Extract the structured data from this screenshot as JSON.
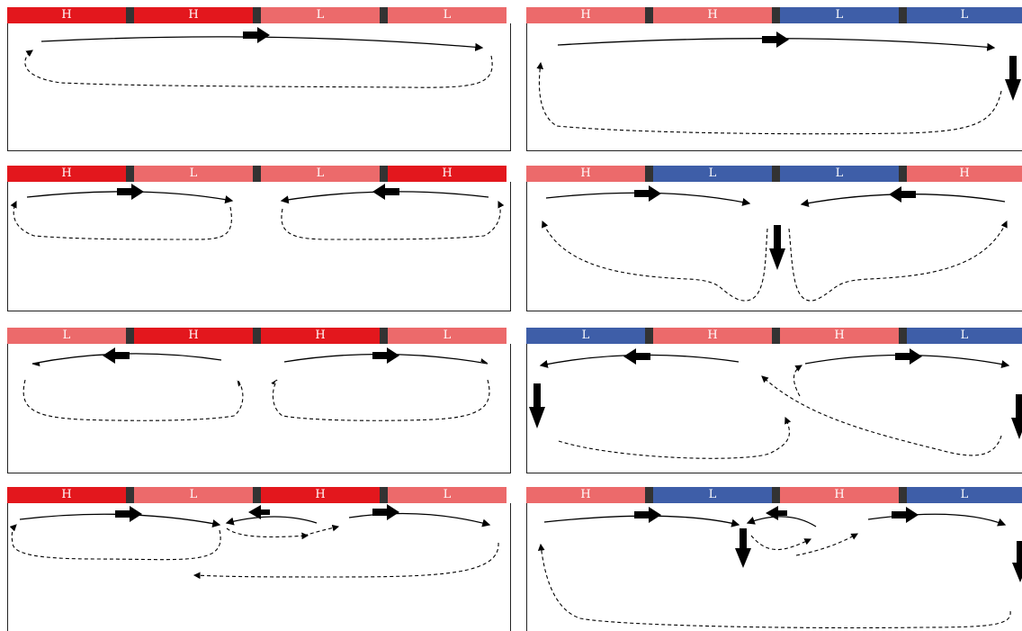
{
  "colors": {
    "H_strong": "#e3171d",
    "H_light": "#ec6a6b",
    "L_light": "#ec6a6b",
    "L_blue": "#3e5ea8",
    "separator": "#333333"
  },
  "panels": [
    {
      "id": "p1",
      "segments": [
        {
          "label": "H",
          "color": "#e3171d"
        },
        {
          "label": "H",
          "color": "#e3171d"
        },
        {
          "label": "L",
          "color": "#ec6a6b"
        },
        {
          "label": "L",
          "color": "#ec6a6b"
        }
      ]
    },
    {
      "id": "p2",
      "segments": [
        {
          "label": "H",
          "color": "#ec6a6b"
        },
        {
          "label": "H",
          "color": "#ec6a6b"
        },
        {
          "label": "L",
          "color": "#3e5ea8"
        },
        {
          "label": "L",
          "color": "#3e5ea8"
        }
      ]
    },
    {
      "id": "p3",
      "segments": [
        {
          "label": "H",
          "color": "#e3171d"
        },
        {
          "label": "L",
          "color": "#ec6a6b"
        },
        {
          "label": "L",
          "color": "#ec6a6b"
        },
        {
          "label": "H",
          "color": "#e3171d"
        }
      ]
    },
    {
      "id": "p4",
      "segments": [
        {
          "label": "H",
          "color": "#ec6a6b"
        },
        {
          "label": "L",
          "color": "#3e5ea8"
        },
        {
          "label": "L",
          "color": "#3e5ea8"
        },
        {
          "label": "H",
          "color": "#ec6a6b"
        }
      ]
    },
    {
      "id": "p5",
      "segments": [
        {
          "label": "L",
          "color": "#ec6a6b"
        },
        {
          "label": "H",
          "color": "#e3171d"
        },
        {
          "label": "H",
          "color": "#e3171d"
        },
        {
          "label": "L",
          "color": "#ec6a6b"
        }
      ]
    },
    {
      "id": "p6",
      "segments": [
        {
          "label": "L",
          "color": "#3e5ea8"
        },
        {
          "label": "H",
          "color": "#ec6a6b"
        },
        {
          "label": "H",
          "color": "#ec6a6b"
        },
        {
          "label": "L",
          "color": "#3e5ea8"
        }
      ]
    },
    {
      "id": "p7",
      "segments": [
        {
          "label": "H",
          "color": "#e3171d"
        },
        {
          "label": "L",
          "color": "#ec6a6b"
        },
        {
          "label": "H",
          "color": "#e3171d"
        },
        {
          "label": "L",
          "color": "#ec6a6b"
        }
      ]
    },
    {
      "id": "p8",
      "segments": [
        {
          "label": "H",
          "color": "#ec6a6b"
        },
        {
          "label": "L",
          "color": "#3e5ea8"
        },
        {
          "label": "H",
          "color": "#ec6a6b"
        },
        {
          "label": "L",
          "color": "#3e5ea8"
        }
      ]
    }
  ]
}
